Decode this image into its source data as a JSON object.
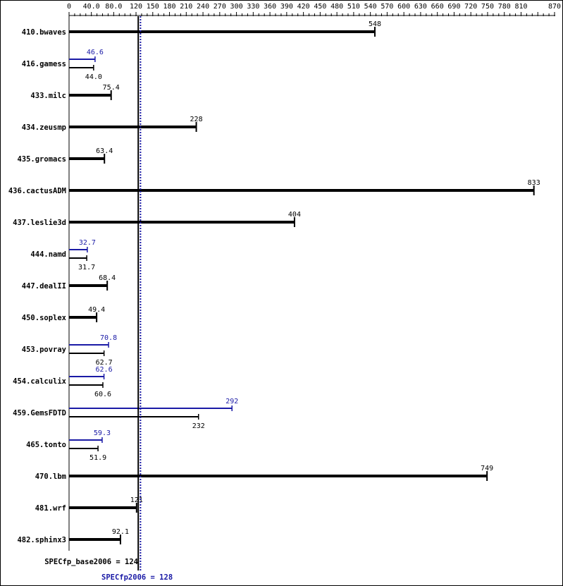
{
  "chart_data": {
    "type": "bar",
    "orientation": "horizontal",
    "axis_position": "top",
    "xlim": [
      0,
      870
    ],
    "x_tick_labels": [
      "0",
      "40.0",
      "80.0",
      "120",
      "150",
      "180",
      "210",
      "240",
      "270",
      "300",
      "330",
      "360",
      "390",
      "420",
      "450",
      "480",
      "510",
      "540",
      "570",
      "600",
      "630",
      "660",
      "690",
      "720",
      "750",
      "780",
      "810",
      "870"
    ],
    "x_tick_values": [
      0,
      40,
      80,
      120,
      150,
      180,
      210,
      240,
      270,
      300,
      330,
      360,
      390,
      420,
      450,
      480,
      510,
      540,
      570,
      600,
      630,
      660,
      690,
      720,
      750,
      780,
      810,
      870
    ],
    "categories": [
      "410.bwaves",
      "416.gamess",
      "433.milc",
      "434.zeusmp",
      "435.gromacs",
      "436.cactusADM",
      "437.leslie3d",
      "444.namd",
      "447.dealII",
      "450.soplex",
      "453.povray",
      "454.calculix",
      "459.GemsFDTD",
      "465.tonto",
      "470.lbm",
      "481.wrf",
      "482.sphinx3"
    ],
    "series": [
      {
        "name": "SPECfp_base2006",
        "color": "#000000",
        "values": [
          548,
          44.0,
          75.4,
          228,
          63.4,
          833,
          404,
          31.7,
          68.4,
          49.4,
          62.7,
          60.6,
          232,
          51.9,
          749,
          121,
          92.1
        ],
        "labels": [
          "548",
          "44.0",
          "75.4",
          "228",
          "63.4",
          "833",
          "404",
          "31.7",
          "68.4",
          "49.4",
          "62.7",
          "60.6",
          "232",
          "51.9",
          "749",
          "121",
          "92.1"
        ]
      },
      {
        "name": "SPECfp2006",
        "color": "#1a1aa6",
        "values": [
          null,
          46.6,
          null,
          null,
          null,
          null,
          null,
          32.7,
          null,
          null,
          70.8,
          62.6,
          292,
          59.3,
          null,
          null,
          null
        ],
        "labels": [
          null,
          "46.6",
          null,
          null,
          null,
          null,
          null,
          "32.7",
          null,
          null,
          "70.8",
          "62.6",
          "292",
          "59.3",
          null,
          null,
          null
        ]
      }
    ],
    "reference_lines": [
      {
        "label": "SPECfp_base2006 = 124",
        "value": 124,
        "color": "#000000",
        "style": "solid"
      },
      {
        "label": "SPECfp2006 = 128",
        "value": 128,
        "color": "#1a1aa6",
        "style": "dotted"
      }
    ],
    "grid": false
  }
}
